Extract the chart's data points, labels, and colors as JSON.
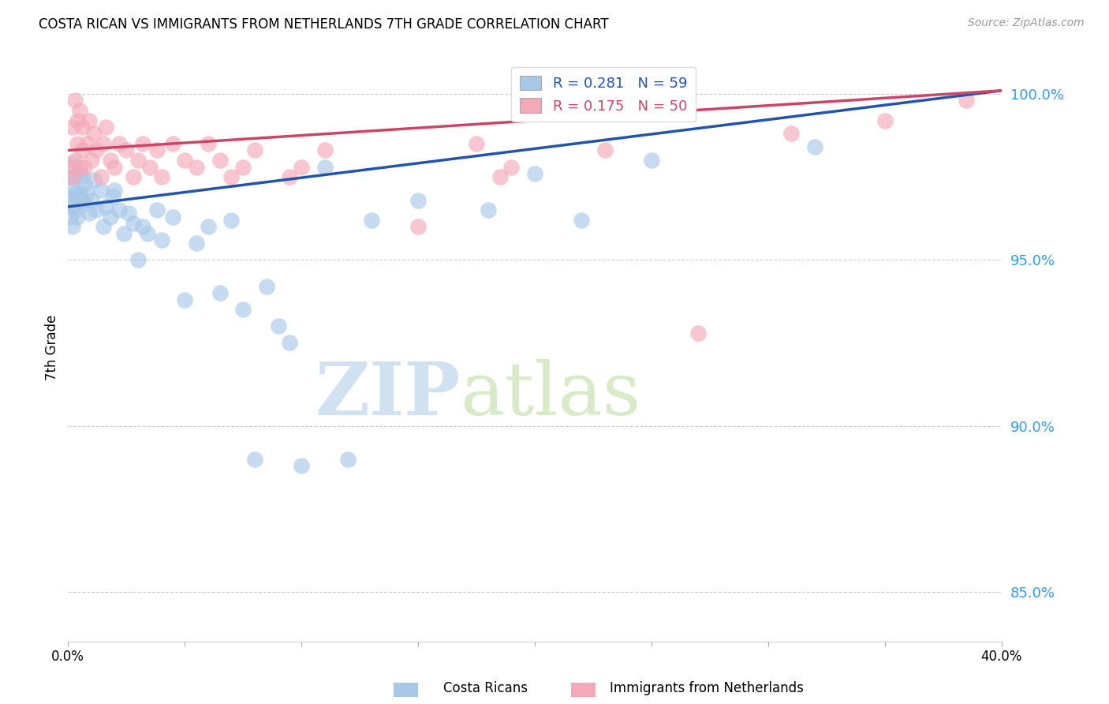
{
  "title": "COSTA RICAN VS IMMIGRANTS FROM NETHERLANDS 7TH GRADE CORRELATION CHART",
  "source": "Source: ZipAtlas.com",
  "ylabel": "7th Grade",
  "xmin": 0.0,
  "xmax": 0.4,
  "ymin": 0.835,
  "ymax": 1.012,
  "yticks": [
    0.85,
    0.9,
    0.95,
    1.0
  ],
  "ytick_labels": [
    "85.0%",
    "90.0%",
    "95.0%",
    "100.0%"
  ],
  "r_blue": 0.281,
  "n_blue": 59,
  "r_pink": 0.175,
  "n_pink": 50,
  "blue_color": "#A8C8E8",
  "pink_color": "#F4A8B8",
  "blue_line_color": "#2255AA",
  "pink_line_color": "#CC4466",
  "watermark_zip": "ZIP",
  "watermark_atlas": "atlas",
  "blue_x": [
    0.001,
    0.001,
    0.001,
    0.002,
    0.002,
    0.002,
    0.002,
    0.003,
    0.003,
    0.003,
    0.004,
    0.004,
    0.005,
    0.005,
    0.006,
    0.006,
    0.007,
    0.007,
    0.008,
    0.009,
    0.01,
    0.011,
    0.012,
    0.014,
    0.015,
    0.016,
    0.018,
    0.019,
    0.02,
    0.022,
    0.024,
    0.026,
    0.028,
    0.03,
    0.032,
    0.034,
    0.038,
    0.04,
    0.045,
    0.05,
    0.055,
    0.06,
    0.065,
    0.07,
    0.075,
    0.08,
    0.085,
    0.09,
    0.095,
    0.1,
    0.11,
    0.12,
    0.13,
    0.15,
    0.18,
    0.2,
    0.22,
    0.25,
    0.32
  ],
  "blue_y": [
    0.975,
    0.969,
    0.963,
    0.972,
    0.966,
    0.96,
    0.979,
    0.975,
    0.97,
    0.965,
    0.969,
    0.963,
    0.976,
    0.97,
    0.975,
    0.968,
    0.973,
    0.967,
    0.97,
    0.964,
    0.968,
    0.974,
    0.965,
    0.971,
    0.96,
    0.966,
    0.963,
    0.969,
    0.971,
    0.965,
    0.958,
    0.964,
    0.961,
    0.95,
    0.96,
    0.958,
    0.965,
    0.956,
    0.963,
    0.938,
    0.955,
    0.96,
    0.94,
    0.962,
    0.935,
    0.89,
    0.942,
    0.93,
    0.925,
    0.888,
    0.978,
    0.89,
    0.962,
    0.968,
    0.965,
    0.976,
    0.962,
    0.98,
    0.984
  ],
  "pink_x": [
    0.001,
    0.002,
    0.002,
    0.003,
    0.003,
    0.004,
    0.004,
    0.005,
    0.005,
    0.006,
    0.006,
    0.007,
    0.008,
    0.009,
    0.01,
    0.011,
    0.012,
    0.014,
    0.015,
    0.016,
    0.018,
    0.02,
    0.022,
    0.025,
    0.028,
    0.03,
    0.032,
    0.035,
    0.038,
    0.04,
    0.045,
    0.05,
    0.055,
    0.06,
    0.065,
    0.07,
    0.075,
    0.08,
    0.095,
    0.1,
    0.11,
    0.15,
    0.175,
    0.185,
    0.19,
    0.23,
    0.27,
    0.31,
    0.35,
    0.385
  ],
  "pink_y": [
    0.978,
    0.975,
    0.99,
    0.98,
    0.998,
    0.985,
    0.992,
    0.978,
    0.995,
    0.983,
    0.99,
    0.978,
    0.985,
    0.992,
    0.98,
    0.988,
    0.983,
    0.975,
    0.985,
    0.99,
    0.98,
    0.978,
    0.985,
    0.983,
    0.975,
    0.98,
    0.985,
    0.978,
    0.983,
    0.975,
    0.985,
    0.98,
    0.978,
    0.985,
    0.98,
    0.975,
    0.978,
    0.983,
    0.975,
    0.978,
    0.983,
    0.96,
    0.985,
    0.975,
    0.978,
    0.983,
    0.928,
    0.988,
    0.992,
    0.998
  ],
  "blue_trend_x0": 0.0,
  "blue_trend_y0": 0.966,
  "blue_trend_x1": 0.4,
  "blue_trend_y1": 1.001,
  "pink_trend_x0": 0.0,
  "pink_trend_y0": 0.983,
  "pink_trend_x1": 0.4,
  "pink_trend_y1": 1.001
}
